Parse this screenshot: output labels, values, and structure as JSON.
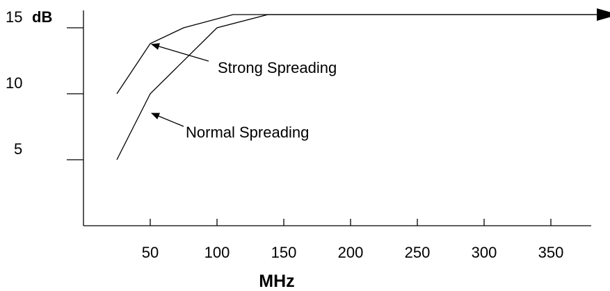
{
  "chart_data": {
    "type": "line",
    "xlabel": "MHz",
    "ylabel": "",
    "y_unit_label": "dB",
    "x_ticks": [
      50,
      100,
      150,
      200,
      250,
      300,
      350
    ],
    "x_tick_labels": [
      "50",
      "100",
      "150",
      "200",
      "250",
      "300",
      "350"
    ],
    "y_ticks": [
      5,
      10,
      15
    ],
    "y_tick_labels": [
      "5",
      "10",
      "15"
    ],
    "xlim": [
      0,
      400
    ],
    "ylim": [
      0,
      16
    ],
    "grid": false,
    "series": [
      {
        "name": "Strong Spreading",
        "x": [
          25,
          50,
          75,
          112,
          400
        ],
        "y": [
          10,
          13.8,
          15,
          16,
          16
        ]
      },
      {
        "name": "Normal Spreading",
        "x": [
          25,
          50,
          100,
          138,
          400
        ],
        "y": [
          5,
          10,
          15,
          16,
          16
        ]
      }
    ],
    "annotations": [
      {
        "text": "Strong Spreading",
        "points_to": {
          "x": 50,
          "y": 13.8
        }
      },
      {
        "text": "Normal Spreading",
        "points_to": {
          "x": 50,
          "y": 10
        }
      }
    ]
  }
}
